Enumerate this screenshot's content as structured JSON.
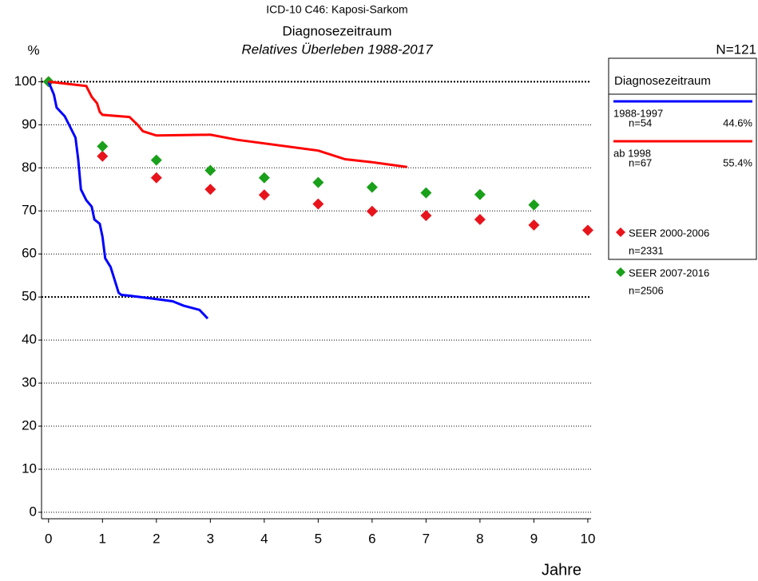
{
  "chart_data": {
    "type": "line",
    "title": "ICD-10 C46: Kaposi-Sarkom",
    "subtitle": "Diagnosezeitraum",
    "subtitle2": "Relatives Überleben 1988-2017",
    "y_label": "%",
    "x_label": "Jahre",
    "total": "N=121",
    "legend_title": "Diagnosezeitraum",
    "legend": "right",
    "grid": true,
    "emphasized_gridlines": [
      50,
      100
    ],
    "xlim": [
      -0.13,
      10.06
    ],
    "ylim": [
      -1.5,
      101
    ],
    "xticks": [
      0,
      1,
      2,
      3,
      4,
      5,
      6,
      7,
      8,
      9,
      10
    ],
    "yticks": [
      0,
      10,
      20,
      30,
      40,
      50,
      60,
      70,
      80,
      90,
      100
    ],
    "series": [
      {
        "name": "1988-1997",
        "n": "n=54",
        "share": "44.6%",
        "color": "#0000ff",
        "mode": "line",
        "x": [
          0,
          0.1,
          0.15,
          0.3,
          0.4,
          0.5,
          0.55,
          0.6,
          0.7,
          0.8,
          0.85,
          0.95,
          1.0,
          1.05,
          1.15,
          1.2,
          1.3,
          1.35,
          1.5,
          2.0,
          2.3,
          2.5,
          2.8,
          2.95
        ],
        "values": [
          100,
          97,
          94,
          92,
          89.5,
          87,
          82,
          75,
          72.5,
          71,
          68,
          67,
          64,
          59,
          57,
          55,
          51,
          50.5,
          50.3,
          49.5,
          49,
          48,
          47,
          45
        ]
      },
      {
        "name": "ab 1998",
        "n": "n=67",
        "share": "55.4%",
        "color": "#ff0000",
        "mode": "line",
        "x": [
          0,
          0.7,
          0.8,
          0.9,
          0.95,
          1.0,
          1.5,
          1.65,
          1.75,
          2.0,
          3.0,
          3.5,
          5.0,
          5.5,
          6.0,
          6.65
        ],
        "values": [
          100,
          99,
          96.5,
          95,
          93,
          92.3,
          91.8,
          90,
          88.5,
          87.5,
          87.7,
          86.5,
          84,
          82,
          81.3,
          80.2
        ]
      },
      {
        "name": "SEER 2000-2006",
        "n": "n=2331",
        "color": "#e8141c",
        "mode": "markers",
        "x": [
          0,
          1,
          2,
          3,
          4,
          5,
          6,
          7,
          8,
          9,
          10
        ],
        "values": [
          100,
          82.7,
          77.7,
          75,
          73.7,
          71.6,
          69.9,
          68.9,
          68,
          66.7,
          65.5
        ]
      },
      {
        "name": "SEER 2007-2016",
        "n": "n=2506",
        "color": "#1aa01a",
        "mode": "markers",
        "x": [
          0,
          1,
          2,
          3,
          4,
          5,
          6,
          7,
          8,
          9
        ],
        "values": [
          100,
          85,
          81.8,
          79.4,
          77.7,
          76.6,
          75.5,
          74.2,
          73.8,
          71.4
        ]
      }
    ]
  }
}
